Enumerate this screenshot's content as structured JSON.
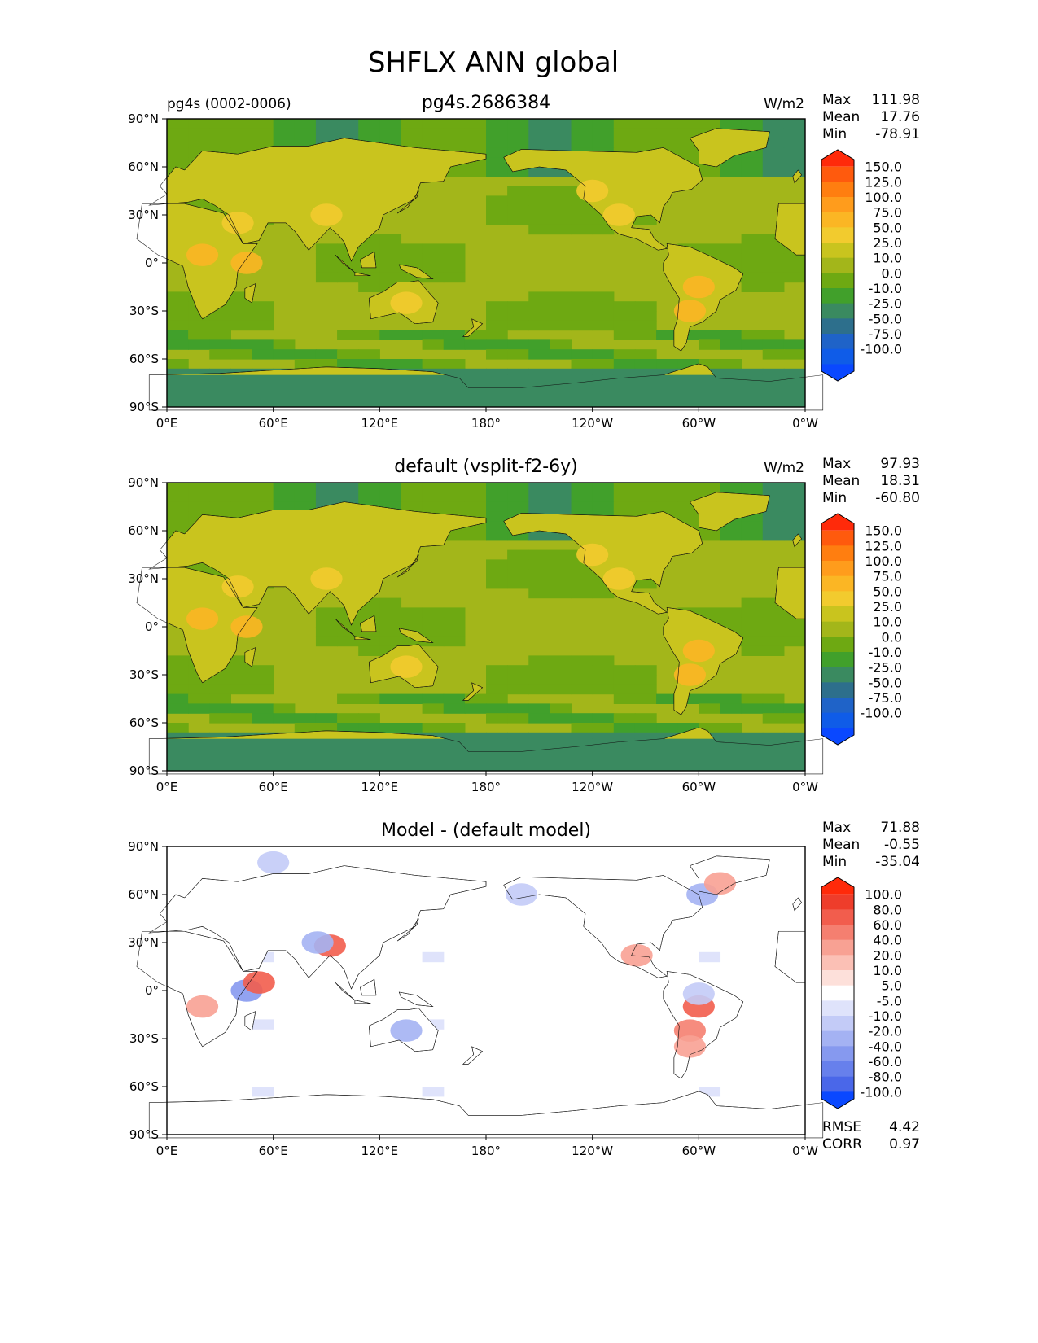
{
  "figure": {
    "title": "SHFLX ANN global"
  },
  "chart_data": [
    {
      "type": "heatmap",
      "left_title": "pg4s (0002-0006)",
      "title": "pg4s.2686384",
      "units": "W/m2",
      "stats": [
        [
          "Max",
          "111.98"
        ],
        [
          "Mean",
          "17.76"
        ],
        [
          "Min",
          "-78.91"
        ]
      ],
      "xticks": [
        "0°E",
        "60°E",
        "120°E",
        "180°",
        "120°W",
        "60°W",
        "0°W"
      ],
      "yticks": [
        "90°N",
        "60°N",
        "30°N",
        "0°",
        "30°S",
        "60°S",
        "90°S"
      ],
      "xlim": [
        0,
        360
      ],
      "ylim": [
        -90,
        90
      ],
      "colorbar_levels": [
        "150.0",
        "125.0",
        "100.0",
        "75.0",
        "50.0",
        "25.0",
        "10.0",
        "0.0",
        "-10.0",
        "-25.0",
        "-50.0",
        "-75.0",
        "-100.0"
      ],
      "colorbar_colors": [
        "#ff2a0a",
        "#ff5a0d",
        "#ff7e10",
        "#ff9c1c",
        "#fbb624",
        "#f2cb2e",
        "#c9c41e",
        "#a3b61a",
        "#6ea912",
        "#41a02b",
        "#3a8a60",
        "#2d6f8c",
        "#1f63c8",
        "#0f5ce8",
        "#0a48ff"
      ],
      "field": "model"
    },
    {
      "type": "heatmap",
      "left_title": "",
      "title": "default (vsplit-f2-6y)",
      "units": "W/m2",
      "stats": [
        [
          "Max",
          "97.93"
        ],
        [
          "Mean",
          "18.31"
        ],
        [
          "Min",
          "-60.80"
        ]
      ],
      "xticks": [
        "0°E",
        "60°E",
        "120°E",
        "180°",
        "120°W",
        "60°W",
        "0°W"
      ],
      "yticks": [
        "90°N",
        "60°N",
        "30°N",
        "0°",
        "30°S",
        "60°S",
        "90°S"
      ],
      "xlim": [
        0,
        360
      ],
      "ylim": [
        -90,
        90
      ],
      "colorbar_levels": [
        "150.0",
        "125.0",
        "100.0",
        "75.0",
        "50.0",
        "25.0",
        "10.0",
        "0.0",
        "-10.0",
        "-25.0",
        "-50.0",
        "-75.0",
        "-100.0"
      ],
      "colorbar_colors": [
        "#ff2a0a",
        "#ff5a0d",
        "#ff7e10",
        "#ff9c1c",
        "#fbb624",
        "#f2cb2e",
        "#c9c41e",
        "#a3b61a",
        "#6ea912",
        "#41a02b",
        "#3a8a60",
        "#2d6f8c",
        "#1f63c8",
        "#0f5ce8",
        "#0a48ff"
      ],
      "field": "reference"
    },
    {
      "type": "heatmap",
      "left_title": "",
      "title": "Model - (default model)",
      "units": "",
      "stats": [
        [
          "Max",
          "71.88"
        ],
        [
          "Mean",
          "-0.55"
        ],
        [
          "Min",
          "-35.04"
        ]
      ],
      "extra_stats": [
        [
          "RMSE",
          "4.42"
        ],
        [
          "CORR",
          "0.97"
        ]
      ],
      "xticks": [
        "0°E",
        "60°E",
        "120°E",
        "180°",
        "120°W",
        "60°W",
        "0°W"
      ],
      "yticks": [
        "90°N",
        "60°N",
        "30°N",
        "0°",
        "30°S",
        "60°S",
        "90°S"
      ],
      "xlim": [
        0,
        360
      ],
      "ylim": [
        -90,
        90
      ],
      "colorbar_levels": [
        "100.0",
        "80.0",
        "60.0",
        "40.0",
        "20.0",
        "10.0",
        "5.0",
        "-5.0",
        "-10.0",
        "-20.0",
        "-40.0",
        "-60.0",
        "-80.0",
        "-100.0"
      ],
      "colorbar_colors": [
        "#ff2a0a",
        "#ee3d2b",
        "#f25d4d",
        "#f57f70",
        "#f8a193",
        "#fbc0b5",
        "#fde0da",
        "#ffffff",
        "#dfe3fb",
        "#c3cbf7",
        "#a4b2f3",
        "#8699ef",
        "#6780ec",
        "#4a67e9",
        "#0a48ff"
      ],
      "field": "difference"
    }
  ]
}
